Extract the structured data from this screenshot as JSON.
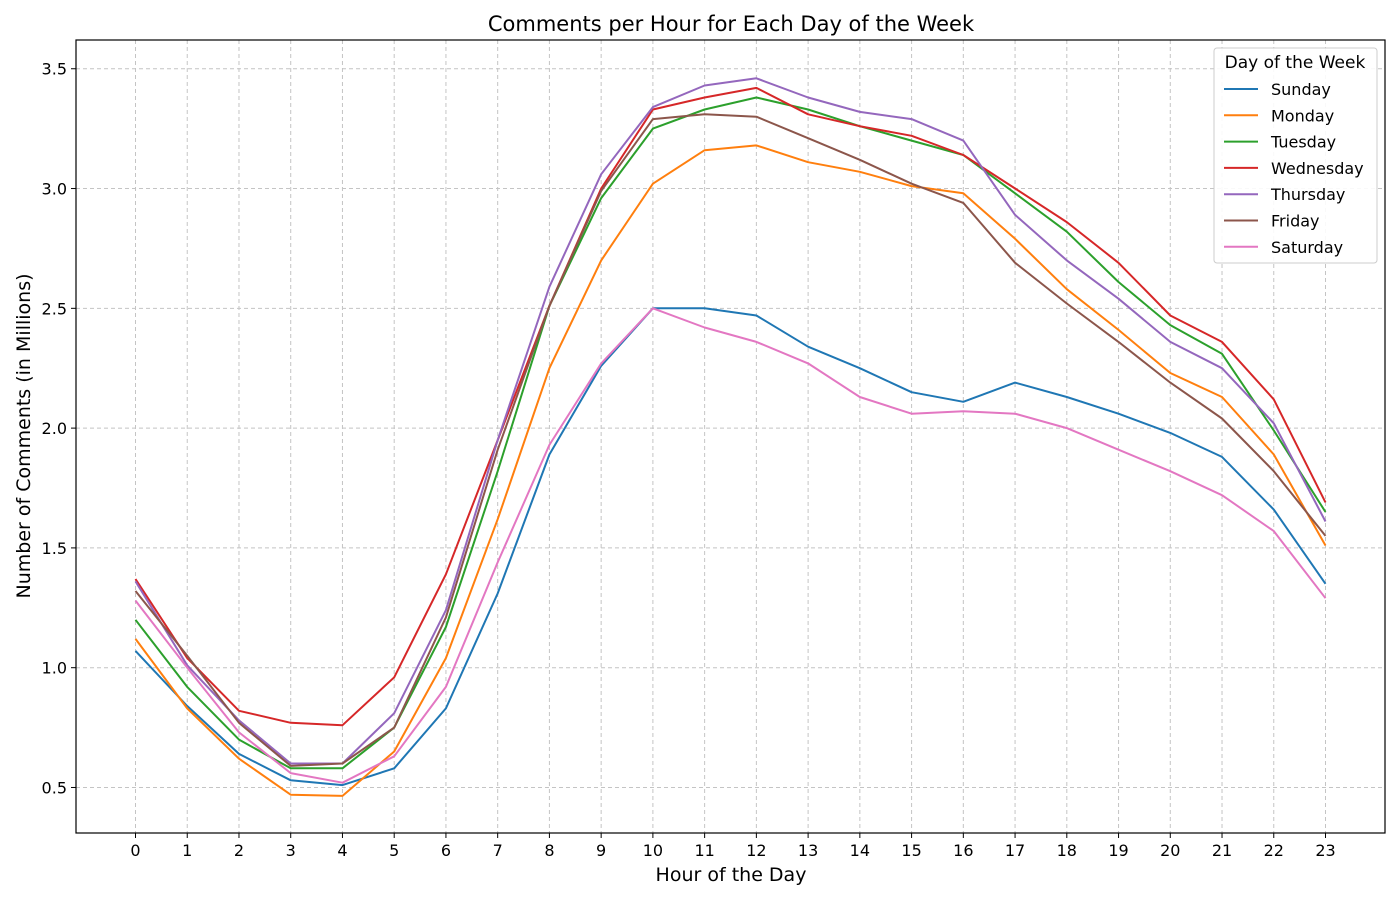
{
  "chart_data": {
    "type": "line",
    "title": "Comments per Hour for Each Day of the Week",
    "xlabel": "Hour of the Day",
    "ylabel": "Number of Comments (in Millions)",
    "x": [
      0,
      1,
      2,
      3,
      4,
      5,
      6,
      7,
      8,
      9,
      10,
      11,
      12,
      13,
      14,
      15,
      16,
      17,
      18,
      19,
      20,
      21,
      22,
      23
    ],
    "xlim": [
      -1.15,
      24.15
    ],
    "ylim": [
      0.31,
      3.62
    ],
    "yticks": [
      0.5,
      1.0,
      1.5,
      2.0,
      2.5,
      3.0,
      3.5
    ],
    "ytick_labels": [
      "0.5",
      "1.0",
      "1.5",
      "2.0",
      "2.5",
      "3.0",
      "3.5"
    ],
    "xtick_labels": [
      "0",
      "1",
      "2",
      "3",
      "4",
      "5",
      "6",
      "7",
      "8",
      "9",
      "10",
      "11",
      "12",
      "13",
      "14",
      "15",
      "16",
      "17",
      "18",
      "19",
      "20",
      "21",
      "22",
      "23"
    ],
    "grid": true,
    "legend": {
      "title": "Day of the Week",
      "placement": "top-right"
    },
    "series": [
      {
        "name": "Sunday",
        "color": "#1f77b4",
        "values": [
          1.07,
          0.84,
          0.64,
          0.53,
          0.51,
          0.58,
          0.83,
          1.31,
          1.89,
          2.26,
          2.5,
          2.5,
          2.47,
          2.34,
          2.25,
          2.15,
          2.11,
          2.19,
          2.13,
          2.06,
          1.98,
          1.88,
          1.66,
          1.35
        ]
      },
      {
        "name": "Monday",
        "color": "#ff7f0e",
        "values": [
          1.12,
          0.83,
          0.62,
          0.47,
          0.465,
          0.65,
          1.04,
          1.62,
          2.25,
          2.7,
          3.02,
          3.16,
          3.18,
          3.11,
          3.07,
          3.01,
          2.98,
          2.79,
          2.58,
          2.41,
          2.23,
          2.13,
          1.89,
          1.51
        ]
      },
      {
        "name": "Tuesday",
        "color": "#2ca02c",
        "values": [
          1.2,
          0.92,
          0.7,
          0.58,
          0.58,
          0.75,
          1.17,
          1.82,
          2.51,
          2.96,
          3.25,
          3.33,
          3.38,
          3.33,
          3.26,
          3.2,
          3.14,
          2.98,
          2.82,
          2.61,
          2.43,
          2.31,
          1.99,
          1.65
        ]
      },
      {
        "name": "Wednesday",
        "color": "#d62728",
        "values": [
          1.37,
          1.04,
          0.82,
          0.77,
          0.76,
          0.96,
          1.39,
          1.95,
          2.51,
          3.0,
          3.33,
          3.38,
          3.42,
          3.31,
          3.26,
          3.22,
          3.14,
          3.0,
          2.86,
          2.69,
          2.47,
          2.36,
          2.12,
          1.69
        ]
      },
      {
        "name": "Thursday",
        "color": "#9467bd",
        "values": [
          1.36,
          1.01,
          0.78,
          0.6,
          0.6,
          0.81,
          1.24,
          1.95,
          2.59,
          3.06,
          3.34,
          3.43,
          3.46,
          3.38,
          3.32,
          3.29,
          3.2,
          2.89,
          2.7,
          2.54,
          2.36,
          2.25,
          2.02,
          1.61
        ]
      },
      {
        "name": "Friday",
        "color": "#8c564b",
        "values": [
          1.32,
          1.05,
          0.77,
          0.59,
          0.6,
          0.75,
          1.21,
          1.91,
          2.51,
          2.99,
          3.29,
          3.31,
          3.3,
          3.21,
          3.12,
          3.02,
          2.94,
          2.69,
          2.52,
          2.36,
          2.19,
          2.04,
          1.82,
          1.55
        ]
      },
      {
        "name": "Saturday",
        "color": "#e377c2",
        "values": [
          1.28,
          1.0,
          0.73,
          0.56,
          0.52,
          0.63,
          0.92,
          1.44,
          1.93,
          2.27,
          2.5,
          2.42,
          2.36,
          2.27,
          2.13,
          2.06,
          2.07,
          2.06,
          2.0,
          1.91,
          1.82,
          1.72,
          1.57,
          1.29
        ]
      }
    ]
  }
}
